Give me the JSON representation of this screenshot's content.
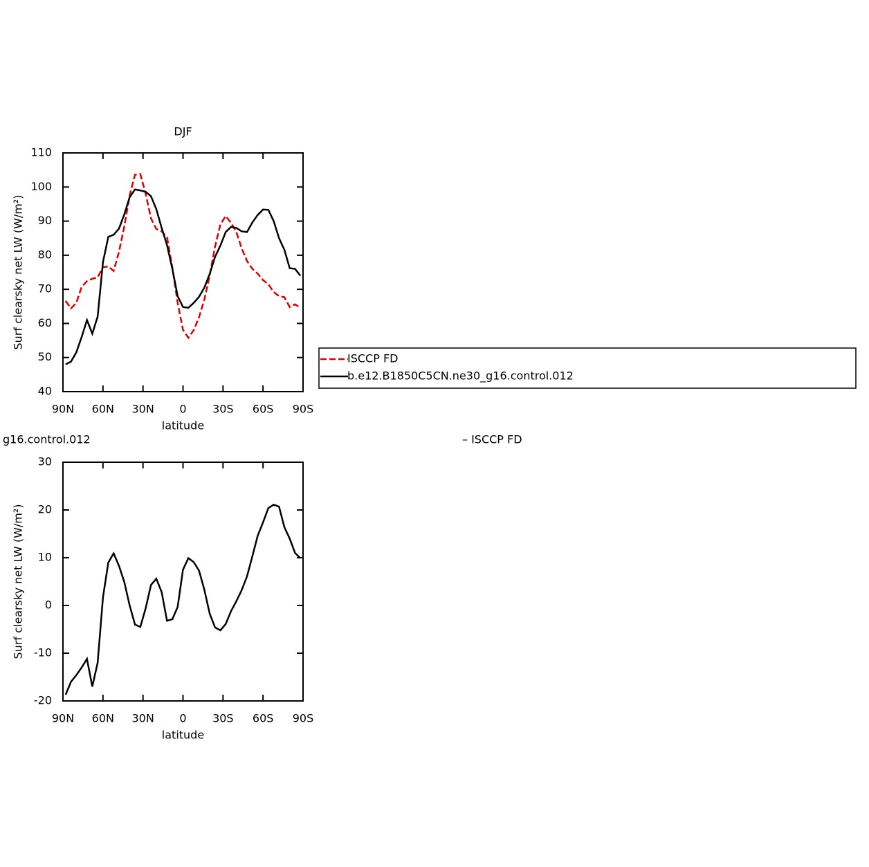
{
  "chart_data": [
    {
      "type": "line",
      "title": "DJF",
      "xlabel": "latitude",
      "ylabel": "Surf clearsky net LW (W/m²)",
      "x": [
        88,
        84,
        80,
        76,
        72,
        68,
        64,
        60,
        56,
        52,
        48,
        44,
        40,
        36,
        32,
        28,
        24,
        20,
        16,
        12,
        8,
        4,
        0,
        -4,
        -8,
        -12,
        -16,
        -20,
        -24,
        -28,
        -32,
        -36,
        -40,
        -44,
        -48,
        -52,
        -56,
        -60,
        -64,
        -68,
        -72,
        -76,
        -80,
        -84,
        -88
      ],
      "xlim": [
        90,
        -90
      ],
      "xticks": [
        {
          "value": 90,
          "label": "90N"
        },
        {
          "value": 60,
          "label": "60N"
        },
        {
          "value": 30,
          "label": "30N"
        },
        0,
        {
          "value": -30,
          "label": "30S"
        },
        {
          "value": -60,
          "label": "60S"
        },
        {
          "value": -90,
          "label": "90S"
        }
      ],
      "ylim": [
        40,
        110
      ],
      "yticks": [
        40,
        50,
        60,
        70,
        80,
        90,
        100,
        110
      ],
      "series": [
        {
          "name": "ISCCP FD",
          "color": "#e00000",
          "linestyle": "dashed",
          "values": [
            66.6,
            64.4,
            66,
            70.7,
            72.4,
            73.1,
            73.5,
            76.5,
            76.7,
            75.4,
            81,
            88.5,
            97.5,
            103.6,
            103.8,
            98,
            90.8,
            87.7,
            87,
            85.3,
            76.5,
            66,
            58.1,
            55.8,
            58,
            61.8,
            67,
            74,
            82.5,
            89,
            91.5,
            89.5,
            86.8,
            82,
            78.3,
            76,
            74.6,
            72.7,
            71.5,
            69.2,
            68,
            67.7,
            64.8,
            65.6,
            64.6
          ]
        },
        {
          "name": "b.e12.B1850C5CN.ne30_g16.control.012",
          "color": "#000000",
          "linestyle": "solid",
          "values": [
            48,
            48.8,
            51.5,
            56,
            61,
            57,
            62,
            78,
            85.4,
            86,
            87.8,
            92,
            97,
            99.3,
            99,
            98.6,
            97.3,
            93.5,
            88,
            83,
            76,
            68,
            64.8,
            64.6,
            66,
            67.8,
            70.5,
            74.5,
            79.5,
            82.8,
            86.8,
            88.3,
            88,
            87,
            86.8,
            89.6,
            91.8,
            93.4,
            93.3,
            90,
            85,
            81.6,
            76.2,
            76,
            74
          ]
        }
      ]
    },
    {
      "type": "line",
      "title": "g16.control.012",
      "right_title": "– ISCCP FD",
      "xlabel": "latitude",
      "ylabel": "Surf clearsky net LW (W/m²)",
      "x": [
        88,
        84,
        80,
        76,
        72,
        68,
        64,
        60,
        56,
        52,
        48,
        44,
        40,
        36,
        32,
        28,
        24,
        20,
        16,
        12,
        8,
        4,
        0,
        -4,
        -8,
        -12,
        -16,
        -20,
        -24,
        -28,
        -32,
        -36,
        -40,
        -44,
        -48,
        -52,
        -56,
        -60,
        -64,
        -68,
        -72,
        -76,
        -80,
        -84,
        -88
      ],
      "xlim": [
        90,
        -90
      ],
      "xticks": [
        {
          "value": 90,
          "label": "90N"
        },
        {
          "value": 60,
          "label": "60N"
        },
        {
          "value": 30,
          "label": "30N"
        },
        0,
        {
          "value": -30,
          "label": "30S"
        },
        {
          "value": -60,
          "label": "60S"
        },
        {
          "value": -90,
          "label": "90S"
        }
      ],
      "ylim": [
        -20,
        30
      ],
      "yticks": [
        -20,
        -10,
        0,
        10,
        20,
        30
      ],
      "series": [
        {
          "color": "#000000",
          "linestyle": "solid",
          "values": [
            -18.7,
            -16,
            -14.6,
            -13,
            -11.2,
            -17,
            -12,
            1.7,
            9,
            10.9,
            8.3,
            4.9,
            0,
            -4,
            -4.5,
            -0.6,
            4.3,
            5.6,
            2.8,
            -3.2,
            -2.9,
            -0.3,
            7.5,
            9.9,
            9.1,
            7.3,
            3.3,
            -1.7,
            -4.6,
            -5.2,
            -3.9,
            -1.2,
            0.9,
            3.2,
            6.1,
            10.3,
            14.6,
            17.4,
            20.4,
            21.1,
            20.7,
            16.4,
            14,
            11,
            9.9
          ]
        }
      ]
    }
  ]
}
